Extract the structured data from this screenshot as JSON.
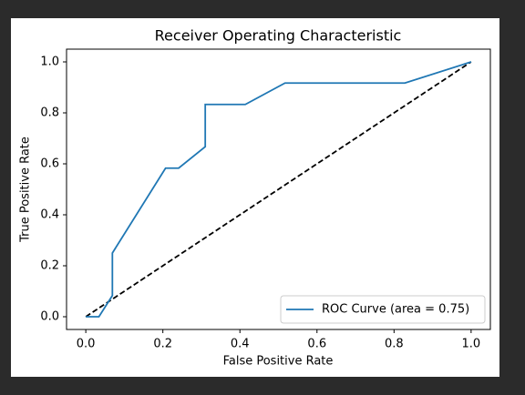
{
  "chart_data": {
    "type": "line",
    "title": "Receiver Operating Characteristic",
    "x_label": "False Positive Rate",
    "y_label": "True Positive Rate",
    "series": [
      {
        "name": "ROC Curve (area = 0.75)",
        "color": "#1f77b4",
        "x": [
          0,
          0.034,
          0.069,
          0.069,
          0.207,
          0.241,
          0.31,
          0.31,
          0.414,
          0.517,
          0.828,
          1
        ],
        "values": [
          0,
          0,
          0.083,
          0.25,
          0.583,
          0.583,
          0.667,
          0.833,
          0.833,
          0.917,
          0.917,
          1
        ]
      }
    ],
    "reference_line": {
      "x": [
        0,
        1
      ],
      "values": [
        0,
        1
      ],
      "color": "#000000",
      "dashed": true
    },
    "xlim": [
      -0.05,
      1.05
    ],
    "ylim": [
      -0.05,
      1.05
    ],
    "xticks": [
      {
        "value": 0,
        "label": "0.0"
      },
      0.2,
      0.4,
      0.6,
      0.8,
      {
        "value": 1,
        "label": "1.0"
      }
    ],
    "yticks": [
      {
        "value": 0,
        "label": "0.0"
      },
      0.2,
      0.4,
      0.6,
      0.8,
      {
        "value": 1,
        "label": "1.0"
      }
    ],
    "grid": false,
    "legend": "lower right"
  }
}
